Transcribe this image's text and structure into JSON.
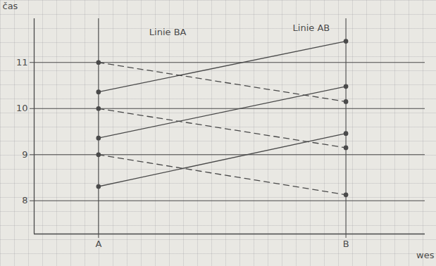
{
  "chart_data": {
    "type": "line",
    "x_label": "wes",
    "y_label": "čas",
    "x": [
      0,
      1
    ],
    "xlim": [
      -0.26,
      1.32
    ],
    "xticks": [
      {
        "value": 0,
        "label": "A"
      },
      {
        "value": 1,
        "label": "B"
      }
    ],
    "ylim": [
      7.28,
      11.95
    ],
    "yticks": [
      8,
      9,
      10,
      11
    ],
    "grid": true,
    "series": [
      {
        "color": "#4a4a4a",
        "line_style": "solid",
        "marker": "circle",
        "values": [
          8.31,
          9.46
        ]
      },
      {
        "color": "#4a4a4a",
        "line_style": "solid",
        "marker": "circle",
        "values": [
          9.36,
          10.48
        ]
      },
      {
        "color": "#4a4a4a",
        "line_style": "solid",
        "marker": "circle",
        "values": [
          10.36,
          11.46
        ]
      },
      {
        "color": "#4a4a4a",
        "line_style": "dashed",
        "marker": "circle",
        "values": [
          11,
          10.15
        ]
      },
      {
        "color": "#4a4a4a",
        "line_style": "dashed",
        "marker": "circle",
        "values": [
          10,
          9.15
        ]
      },
      {
        "color": "#4a4a4a",
        "line_style": "dashed",
        "marker": "circle",
        "values": [
          9,
          8.13
        ]
      }
    ],
    "annotations": [
      {
        "text": "Linie BA",
        "x": 0.28,
        "y": 11.65
      },
      {
        "text": "Linie AB",
        "x": 0.86,
        "y": 11.75
      }
    ]
  }
}
